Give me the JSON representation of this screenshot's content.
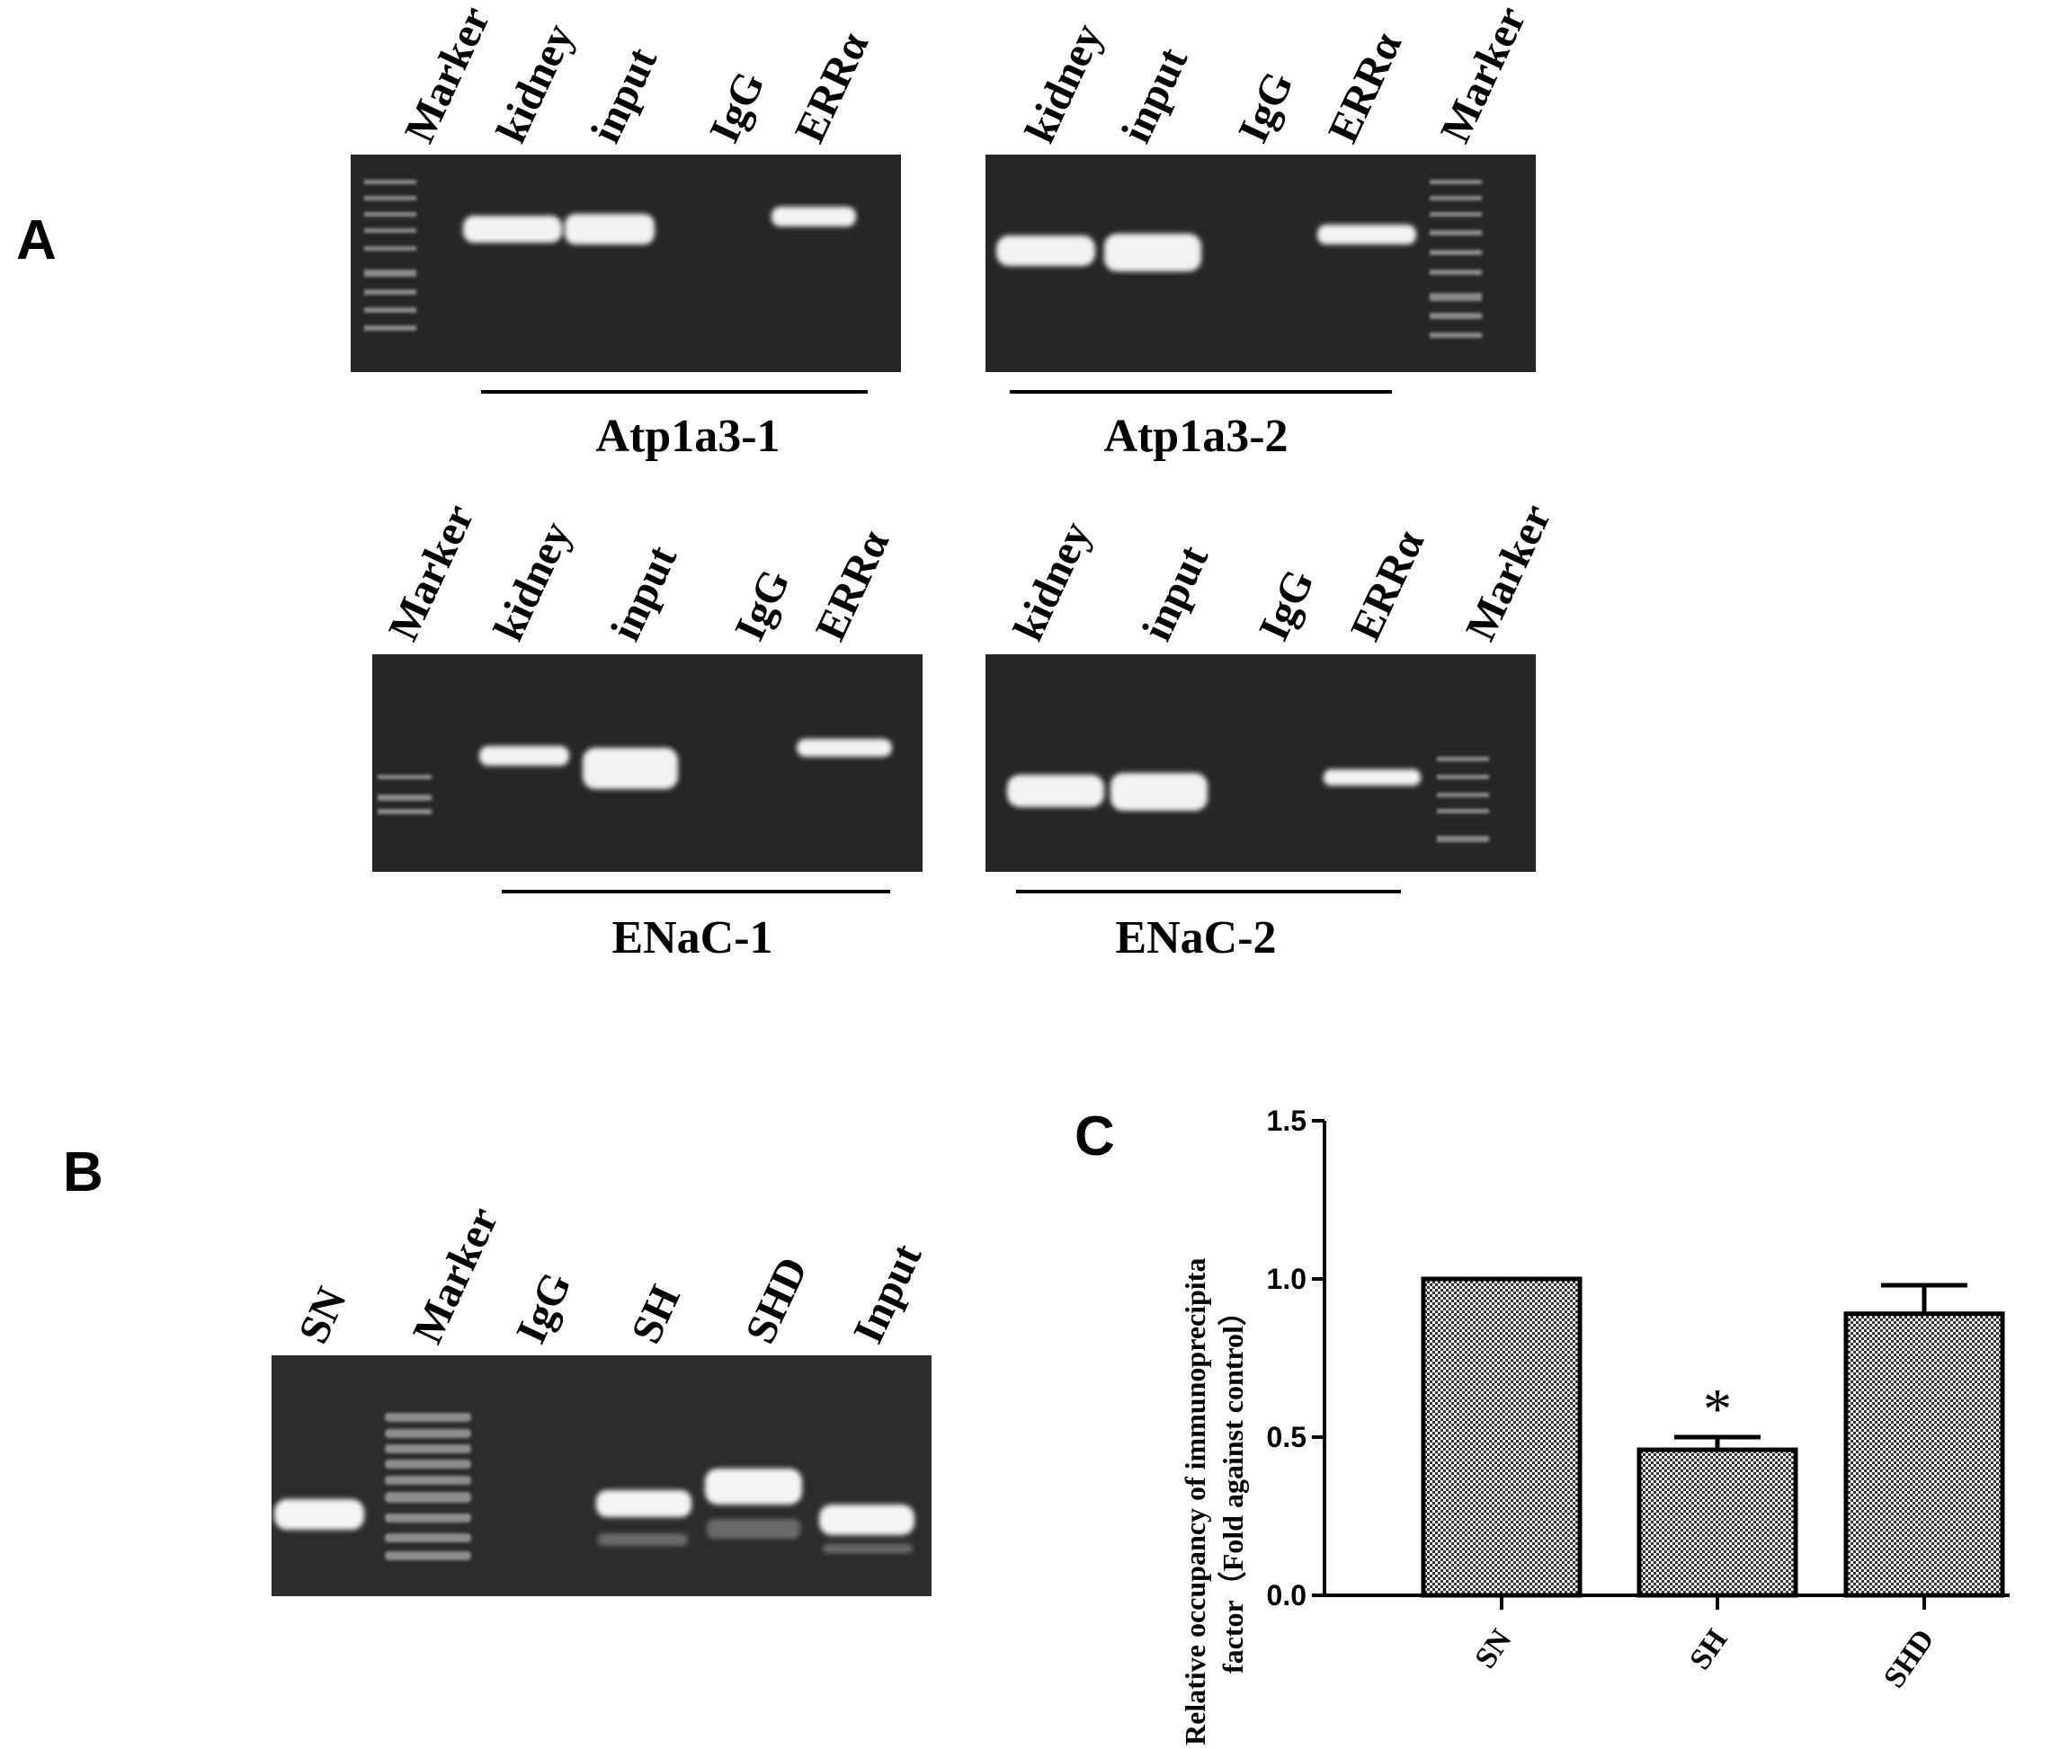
{
  "panels": {
    "a": {
      "letter": "A",
      "gels": [
        {
          "gene": "Atp1a3-1",
          "lanes": [
            "Marker",
            "kidney",
            "input",
            "IgG",
            "ERRα"
          ]
        },
        {
          "gene": "Atp1a3-2",
          "lanes": [
            "kidney",
            "input",
            "IgG",
            "ERRα",
            "Marker"
          ]
        },
        {
          "gene": "ENaC-1",
          "lanes": [
            "Marker",
            "kidney",
            "input",
            "IgG",
            "ERRα"
          ]
        },
        {
          "gene": "ENaC-2",
          "lanes": [
            "kidney",
            "input",
            "IgG",
            "ERRα",
            "Marker"
          ]
        }
      ]
    },
    "b": {
      "letter": "B",
      "lanes": [
        "SN",
        "Marker",
        "IgG",
        "SH",
        "SHD",
        "Input"
      ]
    },
    "c": {
      "letter": "C"
    }
  },
  "chart_data": {
    "type": "bar",
    "categories": [
      "SN",
      "SH",
      "SHD"
    ],
    "values": [
      1.0,
      0.46,
      0.89
    ],
    "errors": [
      0,
      0.04,
      0.09
    ],
    "significance": [
      "",
      "*",
      ""
    ],
    "title": "",
    "ylabel_line1": "Relative  occupancy of immunoprecipita",
    "ylabel_line2": "factor（Fold against control）",
    "xlabel": "",
    "ylim": [
      0,
      1.5
    ],
    "yticks": [
      "0.0",
      "0.5",
      "1.0",
      "1.5"
    ],
    "bar_fill": "crosshatch",
    "grid": false
  }
}
